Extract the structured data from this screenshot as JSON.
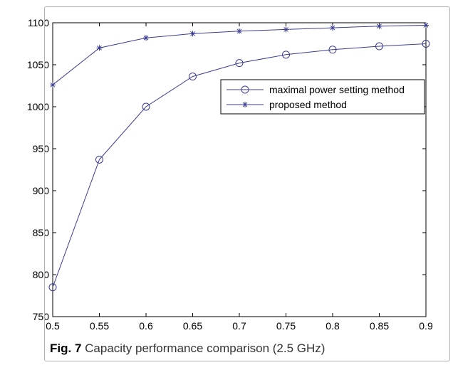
{
  "caption": {
    "label": "Fig. 7",
    "text": "Capacity performance comparison (2.5 GHz)"
  },
  "colors": {
    "series": "#3a3d8f",
    "axis": "#000000",
    "background": "#ffffff"
  },
  "chart_data": {
    "type": "line",
    "title": "",
    "xlabel": "",
    "ylabel": "",
    "xlim": [
      0.5,
      0.9
    ],
    "ylim": [
      750,
      1100
    ],
    "x_ticks": [
      "0.5",
      "0.55",
      "0.6",
      "0.65",
      "0.7",
      "0.75",
      "0.8",
      "0.85",
      "0.9"
    ],
    "y_ticks": [
      "750",
      "800",
      "850",
      "900",
      "950",
      "1000",
      "1050",
      "1100"
    ],
    "grid": false,
    "legend_position": "upper-right",
    "x": [
      0.5,
      0.55,
      0.6,
      0.65,
      0.7,
      0.75,
      0.8,
      0.85,
      0.9
    ],
    "series": [
      {
        "name": "maximal power setting method",
        "marker": "circle",
        "values": [
          785,
          937,
          1000,
          1036,
          1052,
          1062,
          1068,
          1072,
          1075
        ]
      },
      {
        "name": "proposed method",
        "marker": "star",
        "values": [
          1026,
          1070,
          1082,
          1087,
          1090,
          1092,
          1094,
          1096,
          1097
        ]
      }
    ]
  }
}
